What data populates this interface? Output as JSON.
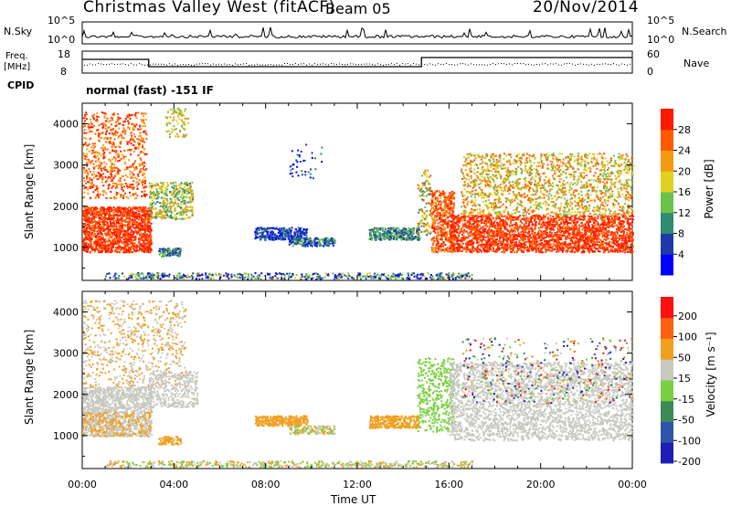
{
  "header": {
    "title": "Christmas Valley West (fitACF)",
    "beam": "Beam 05",
    "date": "20/Nov/2014"
  },
  "strip": {
    "nsky_label": "N.Sky",
    "nsearch_label": "N.Search",
    "nsky_ticks": [
      "10^5",
      "10^0"
    ],
    "nsearch_ticks": [
      "10^5",
      "10^0"
    ],
    "freq_label": "Freq.",
    "freq_unit": "[MHz]",
    "freq_ticks": [
      "18",
      "8"
    ],
    "nave_label": "Nave",
    "nave_ticks": [
      "60",
      "0"
    ],
    "cpid_label": "CPID",
    "cpid_value": "normal (fast) -151 IF"
  },
  "chart_data": [
    {
      "type": "heatmap",
      "ylabel": "Slant Range [km]",
      "xlabel": "",
      "ylim": [
        200,
        4500
      ],
      "yticks": [
        "1000",
        "2000",
        "3000",
        "4000"
      ],
      "colorbar": {
        "label": "Power [dB]",
        "ticks": [
          "4",
          "8",
          "12",
          "16",
          "20",
          "24",
          "28"
        ],
        "colors": [
          "#0000ff",
          "#1f3aa8",
          "#2f8a70",
          "#6ac24a",
          "#e0d020",
          "#f59a10",
          "#ff5a00",
          "#ff1800"
        ]
      }
    },
    {
      "type": "heatmap",
      "ylabel": "Slant Range [km]",
      "xlabel": "Time UT",
      "ylim": [
        200,
        4500
      ],
      "yticks": [
        "1000",
        "2000",
        "3000",
        "4000"
      ],
      "xticks": [
        "00:00",
        "04:00",
        "08:00",
        "12:00",
        "16:00",
        "20:00",
        "00:00"
      ],
      "colorbar": {
        "label": "Velocity [m s⁻¹]",
        "ticks": [
          "200",
          "100",
          "50",
          "15",
          "-15",
          "-50",
          "-100",
          "-200"
        ],
        "colors": [
          "#1e1eb4",
          "#2e55a8",
          "#3c8a55",
          "#7ad040",
          "#c8c8c0",
          "#f0a020",
          "#ff6010",
          "#ff1010"
        ]
      }
    }
  ]
}
